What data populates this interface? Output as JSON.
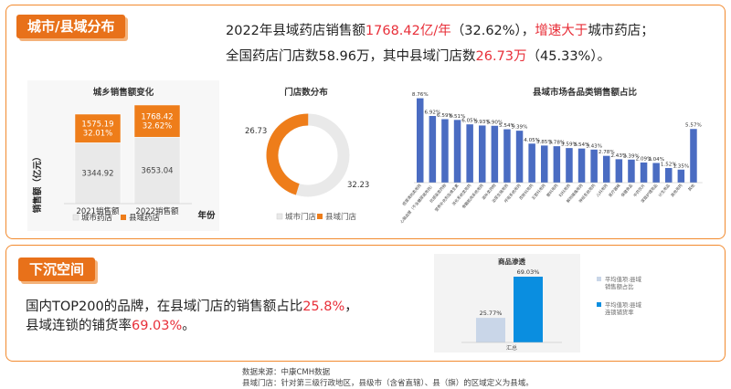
{
  "section1": {
    "tag": "城市/县域分布",
    "line1": [
      {
        "t": "2022年县域药店销售额",
        "hl": false
      },
      {
        "t": "1768.42亿/年",
        "hl": true
      },
      {
        "t": "（32.62%），",
        "hl": false
      },
      {
        "t": "增速大于",
        "hl": true
      },
      {
        "t": "城市药店；",
        "hl": false
      }
    ],
    "line2": [
      {
        "t": "全国药店门店数58.96万，其中县域门店数",
        "hl": false
      },
      {
        "t": "26.73万",
        "hl": true
      },
      {
        "t": "（45.33%）。",
        "hl": false
      }
    ]
  },
  "section2": {
    "tag": "下沉空间",
    "line1": [
      {
        "t": "国内TOP200的品牌，在县域门店的销售额占比",
        "hl": false
      },
      {
        "t": "25.8%",
        "hl": true
      },
      {
        "t": "，",
        "hl": false
      }
    ],
    "line2": [
      {
        "t": "县域连锁的铺货率",
        "hl": false
      },
      {
        "t": "69.03%",
        "hl": true
      },
      {
        "t": "。",
        "hl": false
      }
    ]
  },
  "footer": {
    "line1": "数据来源：中康CMH数据",
    "line2": "县域门店：针对第三级行政地区，县级市（含省直辖）、县（旗）的区域定义为县域。"
  },
  "colors": {
    "orange": "#ee7d1a",
    "grey": "#e9e9e9",
    "blue": "#4a6cc2",
    "accent": "#e8303a",
    "light_blue": "#c9d6e8",
    "bright_blue": "#0a8ee0"
  },
  "chart_data": [
    {
      "type": "bar",
      "stacked": true,
      "title": "城乡销售额变化",
      "ylabel": "销售额（亿元）",
      "xlabel": "年份",
      "categories": [
        "2021销售额",
        "2022销售额"
      ],
      "series": [
        {
          "name": "城市药店",
          "values": [
            3344.92,
            3653.04
          ],
          "color": "#e9e9e9",
          "labels": [
            "3344.92",
            "3653.04"
          ]
        },
        {
          "name": "县域药店",
          "values": [
            1575.19,
            1768.42
          ],
          "color": "#ee7d1a",
          "labels": [
            "1575.19\n32.01%",
            "1768.42\n32.62%"
          ]
        }
      ],
      "legend": "bottom"
    },
    {
      "type": "pie",
      "donut": true,
      "title": "门店数分布",
      "labels": [
        "城市门店",
        "县域门店"
      ],
      "values": [
        32.23,
        26.73
      ],
      "value_labels": [
        "32.23",
        "26.73"
      ],
      "colors": [
        "#e9e9e9",
        "#ee7d1a"
      ],
      "legend": "bottom"
    },
    {
      "type": "bar",
      "title": "县域市场各品类销售额占比",
      "series_color": "#4a6cc2",
      "values": [
        8.76,
        6.92,
        6.59,
        6.51,
        6.05,
        5.93,
        5.9,
        5.54,
        5.39,
        4.05,
        3.85,
        3.78,
        3.59,
        3.54,
        3.43,
        2.78,
        2.43,
        2.39,
        2.09,
        2.04,
        1.52,
        1.35,
        5.57
      ],
      "value_labels": [
        "8.76%",
        "6.92%",
        "6.59%",
        "6.51%",
        "6.05%",
        "5.93%",
        "5.90%",
        "5.54%",
        "5.39%",
        "4.05%",
        "3.85%",
        "3.78%",
        "3.59%",
        "3.54%",
        "3.43%",
        "2.78%",
        "2.43%",
        "2.39%",
        "2.09%",
        "2.04%",
        "1.52%",
        "1.35%",
        "5.57%"
      ],
      "categories": [
        "感冒清热类用药",
        "心脑血管（不含糖尿病用药）",
        "抗感染类药物",
        "营养补充剂及维生素",
        "消化系统类用药",
        "骨骼肌肉系统用药",
        "滋补类药物",
        "泌尿生殖用药",
        "呼吸系统用药",
        "皮肤科用药",
        "五官科用药",
        "眼科用药",
        "妇科用药",
        "解热镇痛用药",
        "神经系统用药",
        "儿科用药",
        "医疗器械",
        "保健食品",
        "中药饮片",
        "家庭护理用品",
        "计生用品",
        "其他用药",
        "其他"
      ],
      "legend": "none"
    },
    {
      "type": "bar",
      "title": "商品渗透",
      "categories": [
        "汇总"
      ],
      "series": [
        {
          "name": "平均值项:县域销售额占比",
          "values": [
            25.77
          ],
          "color": "#c9d6e8",
          "label": "25.77%"
        },
        {
          "name": "平均值项:县域连锁铺货率",
          "values": [
            69.03
          ],
          "color": "#0a8ee0",
          "label": "69.03%"
        }
      ],
      "legend": "right"
    }
  ]
}
